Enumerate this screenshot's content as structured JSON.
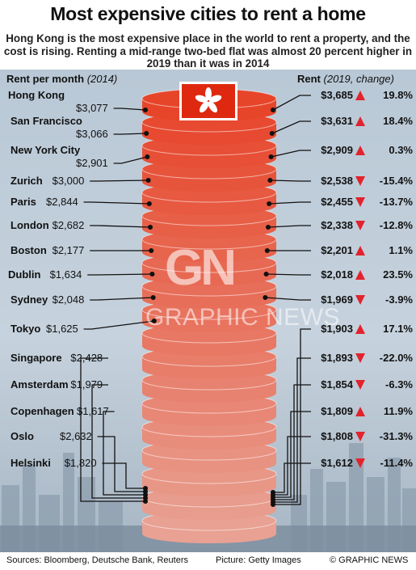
{
  "title": "Most expensive cities to rent a home",
  "subtitle": "Hong Kong is the most expensive place in the world to rent a property, and the cost is rising. Renting a mid-range two-bed flat was almost 20 percent higher in 2019 than it was in 2014",
  "left_header": "Rent per month",
  "left_header_year": "(2014)",
  "right_header": "Rent",
  "right_header_note": "(2019, change)",
  "watermark": "GRAPHIC NEWS",
  "watermark_logo": "GN",
  "footer": {
    "sources": "Sources: Bloomberg, Deutsche Bank, Reuters",
    "picture": "Picture: Getty Images",
    "credit": "© GRAPHIC NEWS"
  },
  "colors": {
    "up": "#e2232d",
    "down": "#e2232d",
    "flag": "#de2910",
    "disc_top": "#e7452a",
    "disc_bottom": "#e8a193"
  },
  "chart_data": {
    "type": "table",
    "categories": [
      "Hong Kong",
      "San Francisco",
      "New York City",
      "Zurich",
      "Paris",
      "London",
      "Boston",
      "Dublin",
      "Sydney",
      "Tokyo",
      "Singapore",
      "Amsterdam",
      "Copenhagen",
      "Oslo",
      "Helsinki"
    ],
    "series": [
      {
        "values": [
          3077,
          3066,
          2901,
          3000,
          2844,
          2682,
          2177,
          1634,
          2048,
          1625,
          2428,
          1979,
          1617,
          2632,
          1820
        ],
        "labels": [
          "$3,077",
          "$3,066",
          "$2,901",
          "$3,000",
          "$2,844",
          "$2,682",
          "$2,177",
          "$1,634",
          "$2,048",
          "$1,625",
          "$2,428",
          "$1,979",
          "$1,617",
          "$2,632",
          "$1,820"
        ]
      },
      {
        "values": [
          3685,
          3631,
          2909,
          2538,
          2455,
          2338,
          2201,
          2018,
          1969,
          1903,
          1893,
          1854,
          1809,
          1808,
          1612
        ],
        "labels": [
          "$3,685",
          "$3,631",
          "$2,909",
          "$2,538",
          "$2,455",
          "$2,338",
          "$2,201",
          "$2,018",
          "$1,969",
          "$1,903",
          "$1,893",
          "$1,854",
          "$1,809",
          "$1,808",
          "$1,612"
        ]
      },
      {
        "values": [
          19.8,
          18.4,
          0.3,
          -15.4,
          -13.7,
          -12.8,
          1.1,
          23.5,
          -3.9,
          17.1,
          -22.0,
          -6.3,
          11.9,
          -31.3,
          -11.4
        ],
        "labels": [
          "19.8%",
          "18.4%",
          "0.3%",
          "-15.4%",
          "-13.7%",
          "-12.8%",
          "1.1%",
          "23.5%",
          "-3.9%",
          "17.1%",
          "-22.0%",
          "-6.3%",
          "11.9%",
          "-31.3%",
          "-11.4%"
        ]
      }
    ]
  }
}
